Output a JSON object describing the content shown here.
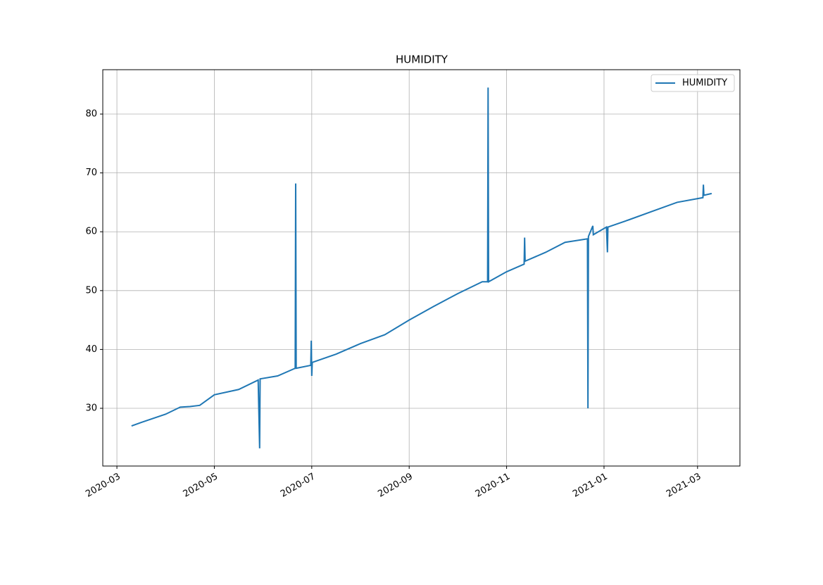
{
  "chart_data": {
    "type": "line",
    "title": "HUMIDITY",
    "x": [
      0.3,
      0.5,
      1.0,
      1.3,
      1.5,
      1.7,
      2.0,
      2.5,
      2.9,
      2.93,
      2.94,
      3.3,
      3.66,
      3.67,
      3.68,
      3.98,
      3.99,
      4.0,
      4.01,
      4.5,
      5.0,
      5.5,
      6.0,
      6.5,
      7.0,
      7.5,
      7.61,
      7.62,
      7.63,
      8.0,
      8.36,
      8.37,
      8.38,
      8.8,
      9.2,
      9.66,
      9.67,
      9.68,
      9.77,
      9.78,
      10.05,
      10.07,
      10.08,
      10.5,
      11.0,
      11.5,
      12.03,
      12.04,
      12.05,
      12.21
    ],
    "series": [
      {
        "name": "HUMIDITY",
        "color": "#1f77b4",
        "values": [
          27,
          27.6,
          29,
          30.2,
          30.3,
          30.5,
          32.3,
          33.2,
          34.8,
          23.2,
          35,
          35.5,
          36.8,
          68.2,
          36.8,
          37.3,
          41.5,
          35.5,
          37.8,
          39.2,
          41,
          42.5,
          45,
          47.3,
          49.5,
          51.5,
          51.5,
          84.5,
          51.5,
          53.2,
          54.5,
          59,
          55,
          56.5,
          58.2,
          58.8,
          30,
          59.2,
          61,
          59.5,
          60.8,
          56.5,
          60.8,
          62,
          63.5,
          65,
          65.8,
          68,
          66.2,
          66.5
        ]
      }
    ],
    "xlim": [
      -0.29,
      12.79
    ],
    "xticks": [
      {
        "value": 0,
        "label": "2020-03"
      },
      {
        "value": 2,
        "label": "2020-05"
      },
      {
        "value": 4,
        "label": "2020-07"
      },
      {
        "value": 6,
        "label": "2020-09"
      },
      {
        "value": 8,
        "label": "2020-11"
      },
      {
        "value": 10,
        "label": "2021-01"
      },
      {
        "value": 11.92,
        "label": "2021-03"
      }
    ],
    "ylim": [
      20.19,
      87.54
    ],
    "yticks": [
      30,
      40,
      50,
      60,
      70,
      80
    ],
    "grid": true,
    "legend": "upper right"
  }
}
